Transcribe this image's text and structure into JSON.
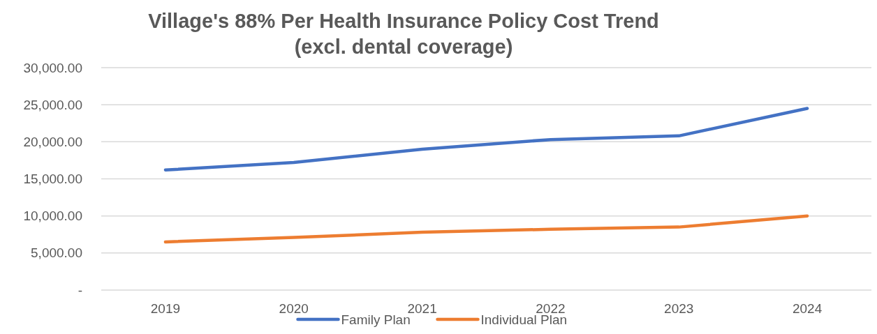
{
  "chart_data": {
    "type": "line",
    "title": "Village's 88% Per Health Insurance Policy Cost Trend\n(excl. dental coverage)",
    "categories": [
      "2019",
      "2020",
      "2021",
      "2022",
      "2023",
      "2024"
    ],
    "series": [
      {
        "name": "Family Plan",
        "color": "#4472c4",
        "values": [
          16200,
          17200,
          19000,
          20300,
          20800,
          24500
        ]
      },
      {
        "name": "Individual Plan",
        "color": "#ed7d31",
        "values": [
          6500,
          7100,
          7800,
          8200,
          8500,
          10000
        ]
      }
    ],
    "ylim": [
      0,
      30000
    ],
    "yticks": [
      {
        "value": 0,
        "label": "-"
      },
      {
        "value": 5000,
        "label": "5,000.00"
      },
      {
        "value": 10000,
        "label": "10,000.00"
      },
      {
        "value": 15000,
        "label": "15,000.00"
      },
      {
        "value": 20000,
        "label": "20,000.00"
      },
      {
        "value": 25000,
        "label": "25,000.00"
      },
      {
        "value": 30000,
        "label": "30,000.00"
      }
    ],
    "grid": "y",
    "legend": "bottom",
    "marker": "none",
    "line_style": "solid"
  }
}
